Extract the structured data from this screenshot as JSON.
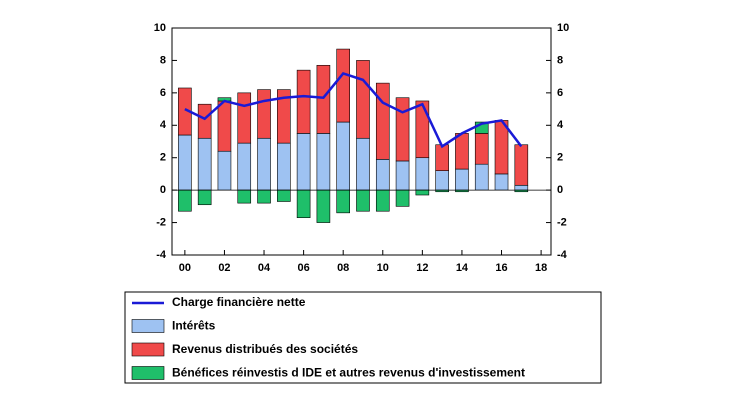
{
  "chart_data": {
    "type": "bar",
    "x": [
      2000,
      2001,
      2002,
      2003,
      2004,
      2005,
      2006,
      2007,
      2008,
      2009,
      2010,
      2011,
      2012,
      2013,
      2014,
      2015,
      2016,
      2017
    ],
    "series": [
      {
        "name": "Charge financière nette",
        "type": "line",
        "color": "#1a1ad6",
        "values": [
          5.0,
          4.4,
          5.5,
          5.2,
          5.5,
          5.7,
          5.8,
          5.7,
          7.2,
          6.8,
          5.4,
          4.8,
          5.3,
          2.7,
          3.5,
          4.1,
          4.3,
          2.7
        ]
      },
      {
        "name": "Intérêts",
        "type": "bar",
        "color": "#9ec2f2",
        "values": [
          3.4,
          3.2,
          2.4,
          2.9,
          3.2,
          2.9,
          3.5,
          3.5,
          4.2,
          3.2,
          1.9,
          1.8,
          2.0,
          1.2,
          1.3,
          1.6,
          1.0,
          0.3
        ]
      },
      {
        "name": "Revenus distribués des sociétés",
        "type": "bar",
        "color": "#f04a4a",
        "values": [
          2.9,
          2.1,
          3.1,
          3.1,
          3.0,
          3.3,
          3.9,
          4.2,
          4.5,
          4.8,
          4.7,
          3.9,
          3.5,
          1.6,
          2.2,
          1.9,
          3.3,
          2.5
        ]
      },
      {
        "name": "Bénéfices réinvestis d IDE et autres revenus d'investissement",
        "type": "bar",
        "color": "#1fbf6a",
        "values": [
          -1.3,
          -0.9,
          0.2,
          -0.8,
          -0.8,
          -0.7,
          -1.7,
          -2.0,
          -1.4,
          -1.3,
          -1.3,
          -1.0,
          -0.3,
          -0.1,
          -0.1,
          0.7,
          0.0,
          -0.1
        ]
      }
    ],
    "xlim": [
      1999.35,
      2018.5
    ],
    "xticks": [
      {
        "value": 2000,
        "label": "00"
      },
      {
        "value": 2002,
        "label": "02"
      },
      {
        "value": 2004,
        "label": "04"
      },
      {
        "value": 2006,
        "label": "06"
      },
      {
        "value": 2008,
        "label": "08"
      },
      {
        "value": 2010,
        "label": "10"
      },
      {
        "value": 2012,
        "label": "12"
      },
      {
        "value": 2014,
        "label": "14"
      },
      {
        "value": 2016,
        "label": "16"
      },
      {
        "value": 2018,
        "label": "18"
      }
    ],
    "ylim": [
      -4,
      10
    ],
    "yticks": [
      -4,
      -2,
      0,
      2,
      4,
      6,
      8,
      10
    ],
    "y2lim": [
      -4,
      10
    ],
    "y2ticks": [
      -4,
      -2,
      0,
      2,
      4,
      6,
      8,
      10
    ]
  }
}
